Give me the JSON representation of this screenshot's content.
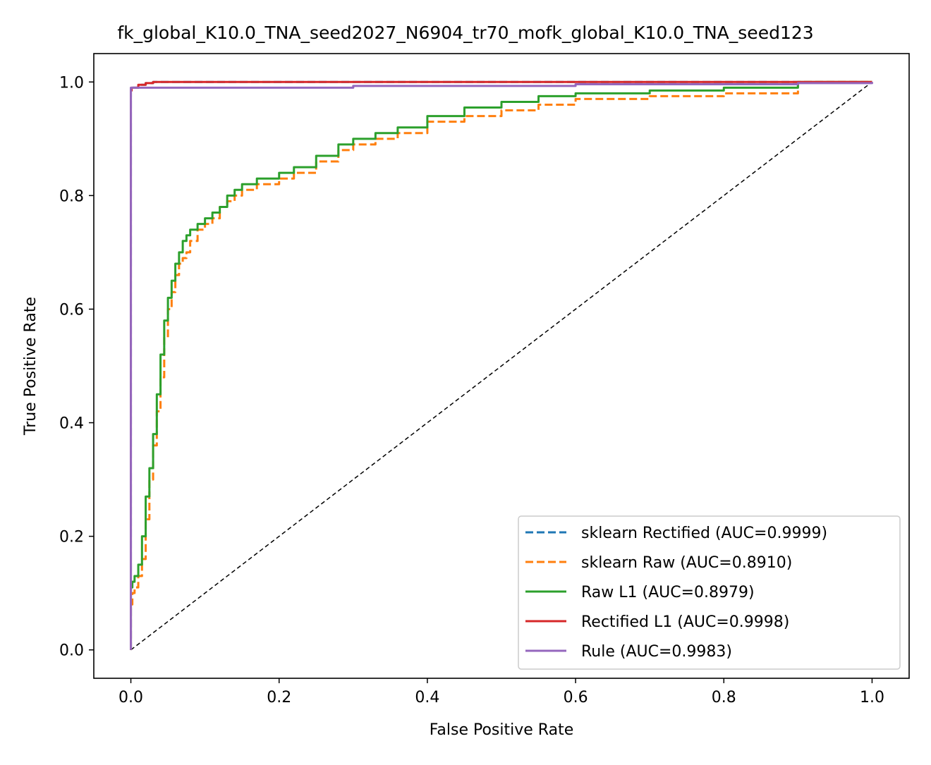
{
  "chart_data": {
    "type": "line",
    "title": "fk_global_K10.0_TNA_seed2027_N6904_tr70_mofk_global_K10.0_TNA_seed123",
    "xlabel": "False Positive Rate",
    "ylabel": "True Positive Rate",
    "xlim": [
      -0.05,
      1.05
    ],
    "ylim": [
      -0.05,
      1.05
    ],
    "xticks": [
      "0.0",
      "0.2",
      "0.4",
      "0.6",
      "0.8",
      "1.0"
    ],
    "yticks": [
      "0.0",
      "0.2",
      "0.4",
      "0.6",
      "0.8",
      "1.0"
    ],
    "grid": false,
    "legend_position": "lower right",
    "diagonal": {
      "x": [
        0,
        1
      ],
      "y": [
        0,
        1
      ],
      "color": "#000000",
      "style": "dashed"
    },
    "series": [
      {
        "name": "sklearn Rectified (AUC=0.9999)",
        "color": "#1f77b4",
        "style": "dashed",
        "x": [
          0.0,
          0.0,
          0.001,
          0.01,
          0.02,
          0.03,
          0.2,
          0.6,
          1.0
        ],
        "y": [
          0.0,
          0.985,
          0.99,
          0.995,
          0.998,
          1.0,
          1.0,
          1.0,
          1.0
        ]
      },
      {
        "name": "sklearn Raw (AUC=0.8910)",
        "color": "#ff7f0e",
        "style": "dashed",
        "x": [
          0.0,
          0.0,
          0.002,
          0.005,
          0.01,
          0.015,
          0.02,
          0.025,
          0.03,
          0.035,
          0.04,
          0.045,
          0.05,
          0.055,
          0.06,
          0.065,
          0.07,
          0.075,
          0.08,
          0.09,
          0.1,
          0.11,
          0.12,
          0.13,
          0.14,
          0.15,
          0.17,
          0.2,
          0.22,
          0.25,
          0.28,
          0.3,
          0.33,
          0.36,
          0.4,
          0.45,
          0.5,
          0.55,
          0.6,
          0.7,
          0.8,
          0.9,
          1.0
        ],
        "y": [
          0.0,
          0.08,
          0.1,
          0.11,
          0.13,
          0.16,
          0.23,
          0.3,
          0.36,
          0.42,
          0.48,
          0.55,
          0.6,
          0.63,
          0.66,
          0.68,
          0.69,
          0.7,
          0.72,
          0.74,
          0.75,
          0.76,
          0.78,
          0.79,
          0.8,
          0.81,
          0.82,
          0.83,
          0.84,
          0.86,
          0.88,
          0.89,
          0.9,
          0.91,
          0.93,
          0.94,
          0.95,
          0.96,
          0.97,
          0.975,
          0.98,
          1.0,
          1.0
        ]
      },
      {
        "name": "Raw L1 (AUC=0.8979)",
        "color": "#2ca02c",
        "style": "solid",
        "x": [
          0.0,
          0.0,
          0.002,
          0.005,
          0.01,
          0.015,
          0.02,
          0.025,
          0.03,
          0.035,
          0.04,
          0.045,
          0.05,
          0.055,
          0.06,
          0.065,
          0.07,
          0.075,
          0.08,
          0.09,
          0.1,
          0.11,
          0.12,
          0.13,
          0.14,
          0.15,
          0.17,
          0.2,
          0.22,
          0.25,
          0.28,
          0.3,
          0.33,
          0.36,
          0.4,
          0.45,
          0.5,
          0.55,
          0.6,
          0.7,
          0.8,
          0.87,
          0.9,
          1.0
        ],
        "y": [
          0.0,
          0.11,
          0.12,
          0.13,
          0.15,
          0.2,
          0.27,
          0.32,
          0.38,
          0.45,
          0.52,
          0.58,
          0.62,
          0.65,
          0.68,
          0.7,
          0.72,
          0.73,
          0.74,
          0.75,
          0.76,
          0.77,
          0.78,
          0.8,
          0.81,
          0.82,
          0.83,
          0.84,
          0.85,
          0.87,
          0.89,
          0.9,
          0.91,
          0.92,
          0.94,
          0.955,
          0.965,
          0.975,
          0.98,
          0.985,
          0.99,
          0.99,
          1.0,
          1.0
        ]
      },
      {
        "name": "Rectified L1 (AUC=0.9998)",
        "color": "#d62728",
        "style": "solid",
        "x": [
          0.0,
          0.0,
          0.001,
          0.01,
          0.02,
          0.03,
          0.2,
          0.6,
          1.0
        ],
        "y": [
          0.0,
          0.985,
          0.99,
          0.995,
          0.998,
          1.0,
          1.0,
          1.0,
          1.0
        ]
      },
      {
        "name": "Rule (AUC=0.9983)",
        "color": "#9467bd",
        "style": "solid",
        "x": [
          0.0,
          0.0,
          0.002,
          0.3,
          0.6,
          0.9,
          1.0
        ],
        "y": [
          0.0,
          0.99,
          0.99,
          0.993,
          0.996,
          0.998,
          1.0
        ]
      }
    ]
  }
}
